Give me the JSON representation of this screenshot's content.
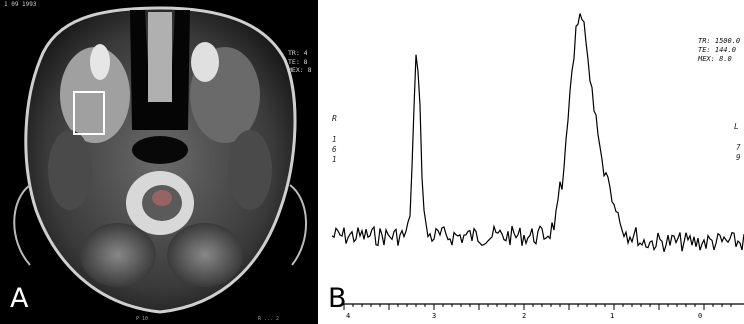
{
  "panel_a": {
    "label": "A",
    "header": "1 09 1993",
    "params": "TR: 4\nTE: 8\nMEX: 8",
    "footer_left": "...",
    "footer_mid": "P 10",
    "footer_right": "R ... 2",
    "roi_box": "roi"
  },
  "panel_b": {
    "label": "B",
    "params": "TR: 1500.0\nTE: 144.0\nMEX: 8.0",
    "side_left": "R",
    "side_left_nums": [
      "1",
      "6",
      "1"
    ],
    "side_right": "L",
    "side_right_nums": [
      "7",
      "9"
    ],
    "axis_ticks": [
      "4",
      "3",
      "2",
      "1",
      "0"
    ]
  },
  "colors": {
    "background_a": "#000000",
    "background_b": "#ffffff",
    "trace": "#000000",
    "roi": "#ffffff"
  }
}
